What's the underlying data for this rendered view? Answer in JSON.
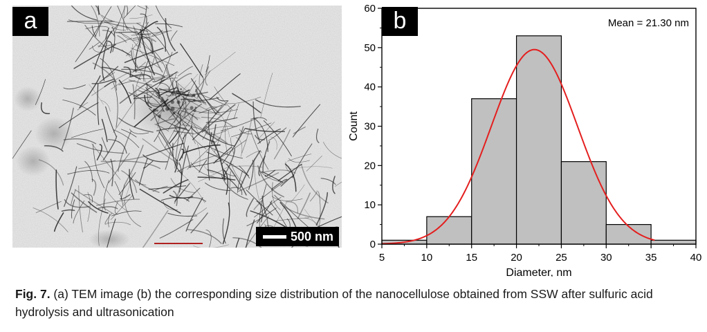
{
  "panel_a": {
    "label": "a",
    "scale_bar": "500 nm"
  },
  "panel_b": {
    "label": "b",
    "annotation": "Mean = 21.30 nm"
  },
  "chart_data": {
    "type": "bar",
    "xlabel": "Diameter, nm",
    "ylabel": "Count",
    "xlim": [
      5,
      40
    ],
    "ylim": [
      0,
      60
    ],
    "xticks": [
      5,
      10,
      15,
      20,
      25,
      30,
      35,
      40
    ],
    "yticks": [
      0,
      10,
      20,
      30,
      40,
      50,
      60
    ],
    "bins": [
      {
        "x0": 5,
        "x1": 10,
        "count": 1
      },
      {
        "x0": 10,
        "x1": 15,
        "count": 7
      },
      {
        "x0": 15,
        "x1": 20,
        "count": 37
      },
      {
        "x0": 20,
        "x1": 25,
        "count": 53
      },
      {
        "x0": 25,
        "x1": 30,
        "count": 21
      },
      {
        "x0": 30,
        "x1": 35,
        "count": 5
      },
      {
        "x0": 35,
        "x1": 40,
        "count": 1
      }
    ],
    "fit": {
      "type": "gaussian",
      "center": 22.0,
      "peak": 49.5,
      "sigma": 4.8,
      "color": "#e41e1e"
    },
    "bar_color": "#c0c0c0"
  },
  "caption": {
    "fig_label": "Fig. 7.",
    "text": " (a) TEM image (b) the corresponding size distribution of the nanocellulose obtained from SSW after sulfuric acid hydrolysis and ultrasonication"
  }
}
